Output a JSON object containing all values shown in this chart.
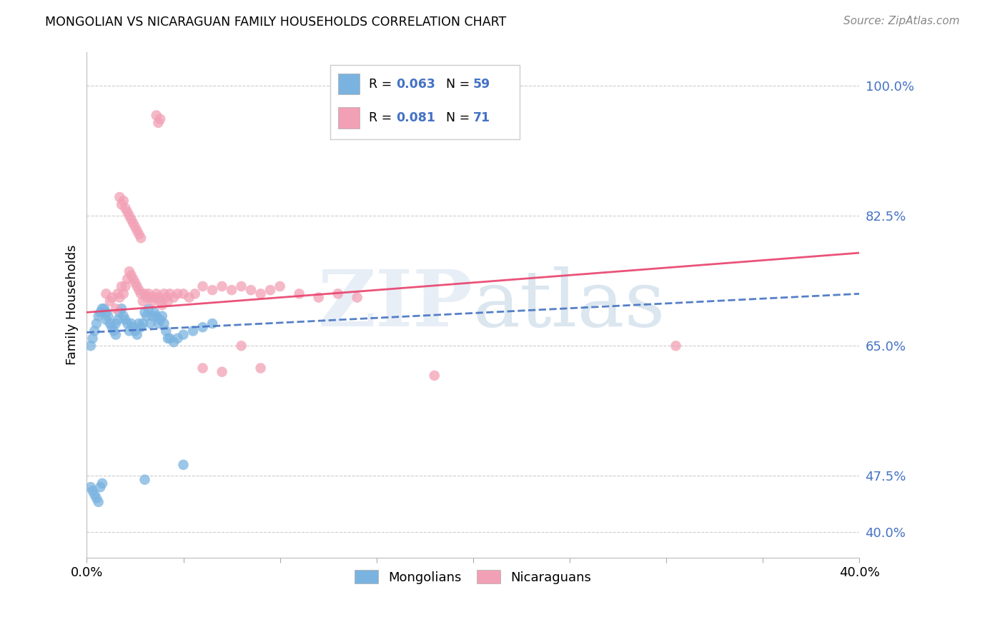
{
  "title": "MONGOLIAN VS NICARAGUAN FAMILY HOUSEHOLDS CORRELATION CHART",
  "source": "Source: ZipAtlas.com",
  "ylabel": "Family Households",
  "yticks": [
    "100.0%",
    "82.5%",
    "65.0%",
    "47.5%",
    "40.0%"
  ],
  "ytick_vals": [
    1.0,
    0.825,
    0.65,
    0.475,
    0.4
  ],
  "xlim": [
    0.0,
    0.4
  ],
  "ylim": [
    0.365,
    1.045
  ],
  "mongolian_color": "#7ab3e0",
  "nicaraguan_color": "#f2a0b5",
  "mongolian_line_color": "#4472c4",
  "nicaraguan_line_color": "#e8406a",
  "R_mon": 0.063,
  "N_mon": 59,
  "R_nic": 0.081,
  "N_nic": 71,
  "mon_line_x": [
    0.0,
    0.4
  ],
  "mon_line_y": [
    0.668,
    0.72
  ],
  "nic_line_x": [
    0.0,
    0.4
  ],
  "nic_line_y": [
    0.695,
    0.775
  ],
  "mon_x": [
    0.002,
    0.003,
    0.004,
    0.005,
    0.006,
    0.007,
    0.008,
    0.009,
    0.01,
    0.01,
    0.011,
    0.012,
    0.013,
    0.014,
    0.015,
    0.015,
    0.016,
    0.017,
    0.018,
    0.019,
    0.02,
    0.021,
    0.022,
    0.023,
    0.024,
    0.025,
    0.026,
    0.027,
    0.028,
    0.029,
    0.03,
    0.031,
    0.032,
    0.033,
    0.034,
    0.035,
    0.036,
    0.037,
    0.038,
    0.039,
    0.04,
    0.041,
    0.042,
    0.043,
    0.045,
    0.047,
    0.05,
    0.055,
    0.06,
    0.065,
    0.002,
    0.003,
    0.004,
    0.005,
    0.006,
    0.007,
    0.008,
    0.05,
    0.03
  ],
  "mon_y": [
    0.65,
    0.66,
    0.67,
    0.68,
    0.69,
    0.695,
    0.7,
    0.7,
    0.695,
    0.685,
    0.69,
    0.68,
    0.675,
    0.67,
    0.665,
    0.68,
    0.685,
    0.695,
    0.7,
    0.69,
    0.685,
    0.68,
    0.67,
    0.68,
    0.675,
    0.67,
    0.665,
    0.68,
    0.675,
    0.68,
    0.695,
    0.69,
    0.7,
    0.68,
    0.69,
    0.695,
    0.69,
    0.68,
    0.685,
    0.69,
    0.68,
    0.67,
    0.66,
    0.66,
    0.655,
    0.66,
    0.665,
    0.67,
    0.675,
    0.68,
    0.46,
    0.455,
    0.45,
    0.445,
    0.44,
    0.46,
    0.465,
    0.49,
    0.47
  ],
  "nic_x": [
    0.01,
    0.012,
    0.013,
    0.015,
    0.016,
    0.017,
    0.018,
    0.019,
    0.02,
    0.021,
    0.022,
    0.023,
    0.024,
    0.025,
    0.026,
    0.027,
    0.028,
    0.029,
    0.03,
    0.031,
    0.032,
    0.033,
    0.034,
    0.035,
    0.036,
    0.037,
    0.038,
    0.039,
    0.04,
    0.041,
    0.042,
    0.043,
    0.045,
    0.047,
    0.05,
    0.053,
    0.056,
    0.06,
    0.065,
    0.07,
    0.075,
    0.08,
    0.085,
    0.09,
    0.095,
    0.1,
    0.11,
    0.12,
    0.13,
    0.14,
    0.017,
    0.018,
    0.019,
    0.02,
    0.021,
    0.022,
    0.023,
    0.024,
    0.025,
    0.026,
    0.027,
    0.028,
    0.305,
    0.18,
    0.06,
    0.07,
    0.08,
    0.09,
    0.036,
    0.037,
    0.038
  ],
  "nic_y": [
    0.72,
    0.71,
    0.715,
    0.7,
    0.72,
    0.715,
    0.73,
    0.72,
    0.73,
    0.74,
    0.75,
    0.745,
    0.74,
    0.735,
    0.73,
    0.725,
    0.72,
    0.71,
    0.72,
    0.715,
    0.72,
    0.715,
    0.71,
    0.715,
    0.72,
    0.715,
    0.71,
    0.705,
    0.72,
    0.715,
    0.71,
    0.72,
    0.715,
    0.72,
    0.72,
    0.715,
    0.72,
    0.73,
    0.725,
    0.73,
    0.725,
    0.73,
    0.725,
    0.72,
    0.725,
    0.73,
    0.72,
    0.715,
    0.72,
    0.715,
    0.85,
    0.84,
    0.845,
    0.835,
    0.83,
    0.825,
    0.82,
    0.815,
    0.81,
    0.805,
    0.8,
    0.795,
    0.65,
    0.61,
    0.62,
    0.615,
    0.65,
    0.62,
    0.96,
    0.95,
    0.955
  ]
}
